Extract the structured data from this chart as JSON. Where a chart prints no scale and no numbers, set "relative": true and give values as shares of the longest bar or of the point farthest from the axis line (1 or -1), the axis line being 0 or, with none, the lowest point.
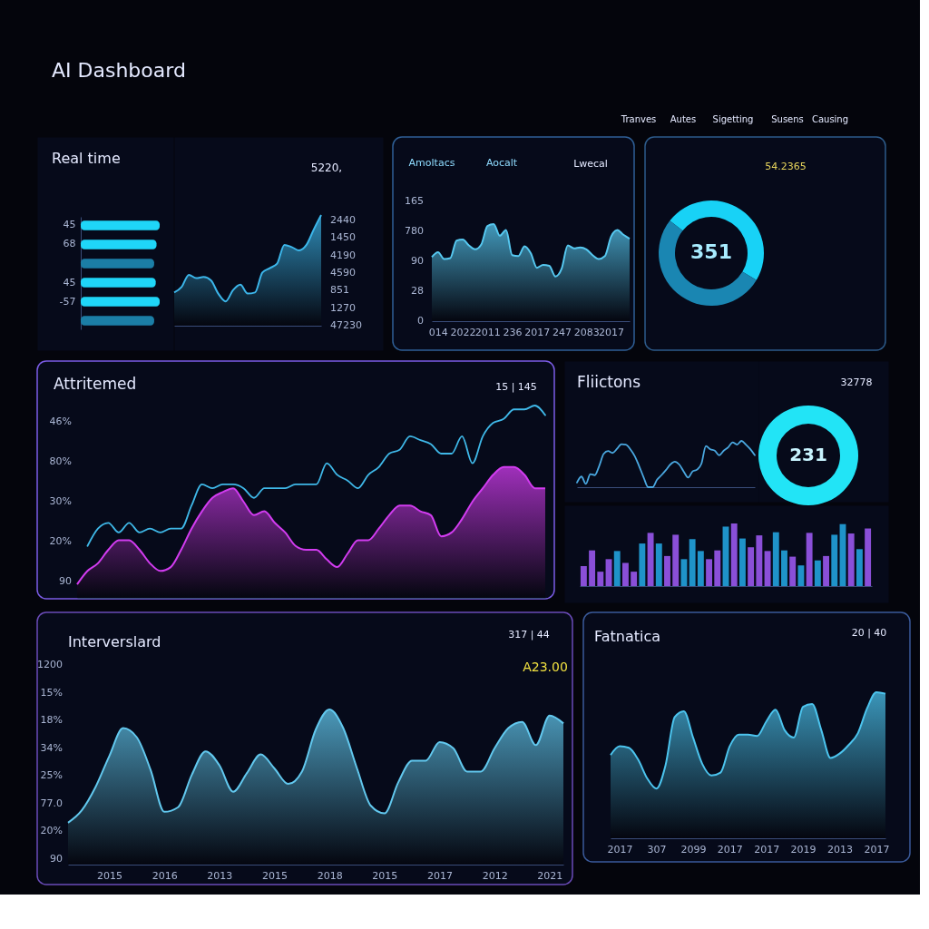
{
  "chart_data": [
    {
      "type": "other",
      "title": "AI Dashboard",
      "annotations": [
        "Tranves",
        "Autes",
        "Sigetting",
        "Susens",
        "Causing"
      ]
    },
    {
      "type": "bar",
      "orientation": "horizontal",
      "relative": true,
      "title": "Real time",
      "categories": [
        "45",
        "68",
        null,
        "45",
        "-57",
        null
      ],
      "values": [
        1,
        0.96,
        0.93,
        0.95,
        1,
        0.93
      ],
      "colors": [
        "#1fd6f8",
        "#1fd6f8",
        "#1b7ea6",
        "#1fd6f8",
        "#1fd6f8",
        "#1b7ea6"
      ]
    },
    {
      "type": "area",
      "relative": true,
      "annotations": [
        "5220,",
        "2440",
        "1450",
        "4190",
        "4590",
        "851",
        "1270",
        "47230"
      ],
      "categories": [
        null,
        null,
        null,
        null,
        null,
        null,
        null,
        null,
        null,
        null,
        null,
        null,
        null,
        null,
        null,
        null,
        null,
        null,
        null,
        null,
        null
      ],
      "values": [
        0.3,
        0.35,
        0.46,
        0.43,
        0.44,
        0.41,
        0.29,
        0.22,
        0.32,
        0.37,
        0.29,
        0.3,
        0.48,
        0.52,
        0.56,
        0.73,
        0.71,
        0.68,
        0.73,
        0.87,
        1
      ],
      "color": "#3cb6ea"
    },
    {
      "type": "area",
      "relative": true,
      "annotations": [
        "Amoltacs",
        "Aocalt",
        "Lwecal",
        "165",
        "780",
        "90",
        "28",
        "0"
      ],
      "categories": [
        null,
        "014",
        null,
        null,
        null,
        "2022",
        null,
        null,
        null,
        "2011",
        null,
        null,
        null,
        "236",
        null,
        null,
        null,
        "2017",
        null,
        null,
        null,
        "247",
        null,
        null,
        null,
        "2083",
        null,
        null,
        null,
        "2017",
        null,
        null,
        null
      ],
      "values": [
        0.66,
        0.71,
        0.64,
        0.65,
        0.83,
        0.84,
        0.78,
        0.74,
        0.79,
        0.98,
        1,
        0.88,
        0.94,
        0.68,
        0.67,
        0.77,
        0.7,
        0.55,
        0.58,
        0.57,
        0.46,
        0.54,
        0.78,
        0.75,
        0.76,
        0.74,
        0.68,
        0.64,
        0.67,
        0.87,
        0.94,
        0.89,
        0.85
      ],
      "color": "#56c8f0"
    },
    {
      "type": "donut",
      "categories": [
        null,
        null
      ],
      "values": [
        48,
        52
      ],
      "colors": [
        "#18d2f6",
        "#1a86b2"
      ],
      "annotations": [
        "54.2365",
        "351"
      ]
    },
    {
      "type": "area",
      "relative": true,
      "title": "Attritemed",
      "annotations": [
        "15 | 145",
        "46%",
        "80%",
        "30%",
        "20%",
        "90"
      ],
      "categories": [
        null,
        null,
        null,
        null,
        null,
        null,
        null,
        null,
        null,
        null,
        null,
        null,
        null,
        null,
        null,
        null,
        null,
        null,
        null,
        null,
        null,
        null,
        null,
        null,
        null,
        null,
        null,
        null,
        null,
        null,
        null,
        null,
        null,
        null,
        null,
        null,
        null,
        null,
        null,
        null,
        null,
        null,
        null,
        null,
        null,
        null
      ],
      "series": [
        {
          "type": "area",
          "color": "#d23cf0",
          "values": [
            0.07,
            0.14,
            0.18,
            0.25,
            0.3,
            0.3,
            0.25,
            0.18,
            0.14,
            0.16,
            0.25,
            0.36,
            0.45,
            0.52,
            0.55,
            0.57,
            0.5,
            0.43,
            0.45,
            0.39,
            0.34,
            0.27,
            0.25,
            0.25,
            0.2,
            0.16,
            0.23,
            0.3,
            0.3,
            0.36,
            0.43,
            0.48,
            0.48,
            0.45,
            0.43,
            0.32,
            0.34,
            0.41,
            0.5,
            0.57,
            0.64,
            0.68,
            0.68,
            0.64,
            0.57,
            0.57
          ]
        },
        {
          "type": "line",
          "color": "#3fb8e8",
          "values": [
            null,
            0.27,
            0.36,
            0.39,
            0.34,
            0.39,
            0.34,
            0.36,
            0.34,
            0.36,
            0.36,
            0.48,
            0.59,
            0.57,
            0.59,
            0.59,
            0.57,
            0.52,
            0.57,
            0.57,
            0.57,
            0.59,
            0.59,
            0.59,
            0.7,
            0.64,
            0.61,
            0.57,
            0.64,
            0.68,
            0.75,
            0.77,
            0.84,
            0.82,
            0.8,
            0.75,
            0.75,
            0.84,
            0.7,
            0.84,
            0.91,
            0.93,
            0.98,
            0.98,
            1.0,
            0.95
          ]
        }
      ]
    },
    {
      "type": "line",
      "relative": true,
      "title": "Fliictons",
      "categories": [
        null,
        null,
        null,
        null,
        null,
        null,
        null,
        null,
        null,
        null,
        null,
        null,
        null,
        null,
        null,
        null,
        null,
        null,
        null,
        null,
        null,
        null,
        null,
        null,
        null,
        null,
        null,
        null,
        null,
        null,
        null,
        null,
        null,
        null,
        null,
        null,
        null,
        null,
        null,
        null,
        null
      ],
      "values": [
        0.1,
        0.23,
        0.07,
        0.28,
        0.26,
        0.46,
        0.72,
        0.78,
        0.74,
        0.83,
        0.93,
        0.92,
        0.82,
        0.67,
        0.45,
        0.21,
        0,
        0,
        0.16,
        0.26,
        0.37,
        0.49,
        0.55,
        0.49,
        0.34,
        0.21,
        0.34,
        0.38,
        0.51,
        0.89,
        0.82,
        0.79,
        0.69,
        0.79,
        0.86,
        0.97,
        0.92,
        1,
        0.92,
        0.82,
        0.69
      ],
      "color": "#4aa8e0"
    },
    {
      "type": "donut",
      "categories": [
        null
      ],
      "values": [
        100
      ],
      "colors": [
        "#22e4f6"
      ],
      "annotations": [
        "32778",
        "231"
      ]
    },
    {
      "type": "bar",
      "relative": true,
      "categories": [
        null,
        null,
        null,
        null,
        null,
        null,
        null,
        null,
        null,
        null,
        null,
        null,
        null,
        null,
        null,
        null,
        null,
        null,
        null,
        null,
        null,
        null,
        null,
        null,
        null,
        null,
        null,
        null,
        null,
        null,
        null,
        null,
        null,
        null,
        null
      ],
      "values": [
        0.32,
        0.57,
        0.23,
        0.43,
        0.56,
        0.37,
        0.23,
        0.68,
        0.85,
        0.68,
        0.48,
        0.82,
        0.43,
        0.75,
        0.56,
        0.43,
        0.57,
        0.95,
        1,
        0.76,
        0.62,
        0.81,
        0.56,
        0.86,
        0.57,
        0.47,
        0.33,
        0.85,
        0.41,
        0.48,
        0.82,
        0.99,
        0.84,
        0.59,
        0.92
      ],
      "colors": [
        "#8a4fd8",
        "#8a4fd8",
        "#8a4fd8",
        "#8a4fd8",
        "#1f93c9",
        "#8a4fd8",
        "#8a4fd8",
        "#1f93c9",
        "#8a4fd8",
        "#1f93c9",
        "#8a4fd8",
        "#8a4fd8",
        "#1f93c9",
        "#1f93c9",
        "#1f93c9",
        "#8a4fd8",
        "#8a4fd8",
        "#1f93c9",
        "#8a4fd8",
        "#1f93c9",
        "#8a4fd8",
        "#8a4fd8",
        "#8a4fd8",
        "#1f93c9",
        "#1f93c9",
        "#8a4fd8",
        "#1f93c9",
        "#8a4fd8",
        "#1f93c9",
        "#8a4fd8",
        "#1f93c9",
        "#1f93c9",
        "#8a4fd8",
        "#1f93c9",
        "#8a4fd8"
      ]
    },
    {
      "type": "area",
      "relative": true,
      "title": "Interverslard",
      "annotations": [
        "317 | 44",
        "A23.00",
        "1200",
        "15%",
        "18%",
        "34%",
        "25%",
        "77.0",
        "20%",
        "90"
      ],
      "categories": [
        null,
        null,
        null,
        "2015",
        null,
        null,
        null,
        "2016",
        null,
        null,
        null,
        "2013",
        null,
        null,
        null,
        "2015",
        null,
        null,
        null,
        "2018",
        null,
        null,
        null,
        "2015",
        null,
        null,
        null,
        "2017",
        null,
        null,
        null,
        "2012",
        null,
        null,
        null,
        "2021",
        null
      ],
      "values": [
        0.27,
        0.35,
        0.5,
        0.7,
        0.88,
        0.82,
        0.61,
        0.34,
        0.37,
        0.58,
        0.73,
        0.64,
        0.47,
        0.59,
        0.71,
        0.62,
        0.52,
        0.6,
        0.87,
        1.0,
        0.88,
        0.62,
        0.38,
        0.33,
        0.53,
        0.67,
        0.67,
        0.79,
        0.75,
        0.6,
        0.6,
        0.75,
        0.88,
        0.92,
        0.77,
        0.96,
        0.91
      ],
      "color": "#62c8ee"
    },
    {
      "type": "area",
      "relative": true,
      "title": "Fatnatica",
      "annotations": [
        "20 | 40"
      ],
      "categories": [
        null,
        "2017",
        null,
        null,
        null,
        "307",
        null,
        null,
        null,
        "2099",
        null,
        null,
        null,
        "2017",
        null,
        null,
        null,
        "2017",
        null,
        null,
        null,
        "2019",
        null,
        null,
        null,
        "2013",
        null,
        null,
        null,
        "2017",
        null
      ],
      "values": [
        0.57,
        0.63,
        0.62,
        0.54,
        0.41,
        0.34,
        0.5,
        0.83,
        0.87,
        0.69,
        0.51,
        0.43,
        0.45,
        0.63,
        0.71,
        0.71,
        0.7,
        0.8,
        0.88,
        0.74,
        0.69,
        0.9,
        0.92,
        0.74,
        0.55,
        0.58,
        0.64,
        0.72,
        0.89,
        1.0,
        0.99
      ],
      "color": "#4cc4ee"
    }
  ]
}
